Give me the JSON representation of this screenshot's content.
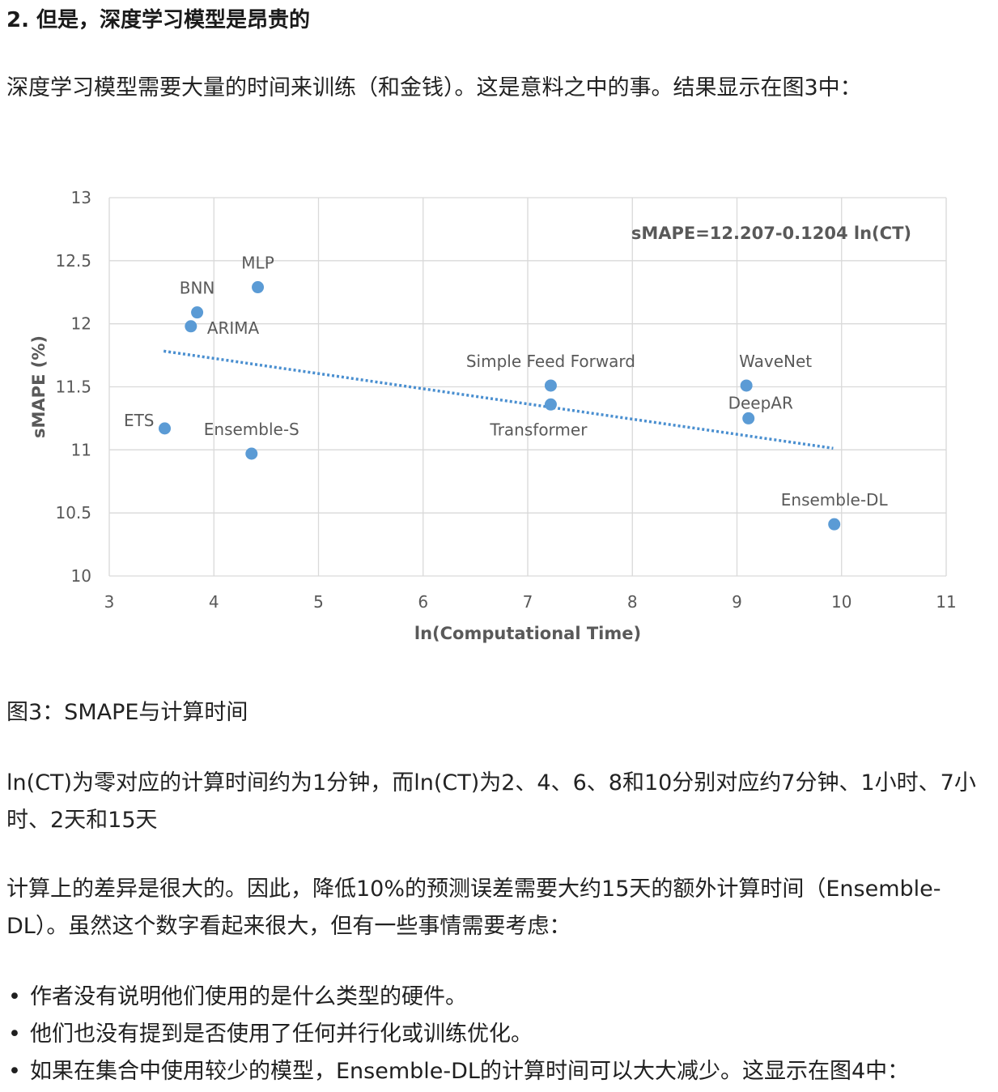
{
  "heading": "2. 但是，深度学习模型是昂贵的",
  "paragraph1": "深度学习模型需要大量的时间来训练（和金钱）。这是意料之中的事。结果显示在图3中：",
  "caption": "图3：SMAPE与计算时间",
  "paragraph2": "ln(CT)为零对应的计算时间约为1分钟，而ln(CT)为2、4、6、8和10分别对应约7分钟、1小时、7小时、2天和15天",
  "paragraph3": "计算上的差异是很大的。因此，降低10%的预测误差需要大约15天的额外计算时间（Ensemble-DL）。虽然这个数字看起来很大，但有一些事情需要考虑：",
  "bullet_glyph": "•",
  "bullets": [
    "作者没有说明他们使用的是什么类型的硬件。",
    "他们也没有提到是否使用了任何并行化或训练优化。",
    "如果在集合中使用较少的模型，Ensemble-DL的计算时间可以大大减少。这显示在图4中："
  ],
  "chart_data": {
    "type": "scatter",
    "title": "",
    "xlabel": "ln(Computational Time)",
    "ylabel": "sMAPE (%)",
    "xlim": [
      3,
      11
    ],
    "ylim": [
      10,
      13
    ],
    "xticks": [
      "3",
      "4",
      "5",
      "6",
      "7",
      "8",
      "9",
      "10",
      "11"
    ],
    "yticks": [
      "10",
      "10.5",
      "11",
      "11.5",
      "12",
      "12.5",
      "13"
    ],
    "grid": true,
    "point_color": "#5b9bd5",
    "trend_color": "#4a8fd0",
    "annotation": "sMAPE=12.207-0.1204 ln(CT)",
    "trendline": {
      "intercept": 12.207,
      "slope": -0.1204,
      "x_range": [
        3.52,
        9.92
      ]
    },
    "points": [
      {
        "label": "MLP",
        "x": 4.42,
        "y": 12.29
      },
      {
        "label": "BNN",
        "x": 3.84,
        "y": 12.09
      },
      {
        "label": "ARIMA",
        "x": 3.78,
        "y": 11.98
      },
      {
        "label": "ETS",
        "x": 3.53,
        "y": 11.17
      },
      {
        "label": "Ensemble-S",
        "x": 4.36,
        "y": 10.97
      },
      {
        "label": "Simple Feed Forward",
        "x": 7.22,
        "y": 11.51
      },
      {
        "label": "Transformer",
        "x": 7.22,
        "y": 11.36
      },
      {
        "label": "WaveNet",
        "x": 9.09,
        "y": 11.51
      },
      {
        "label": "DeepAR",
        "x": 9.11,
        "y": 11.25
      },
      {
        "label": "Ensemble-DL",
        "x": 9.93,
        "y": 10.41
      }
    ]
  }
}
